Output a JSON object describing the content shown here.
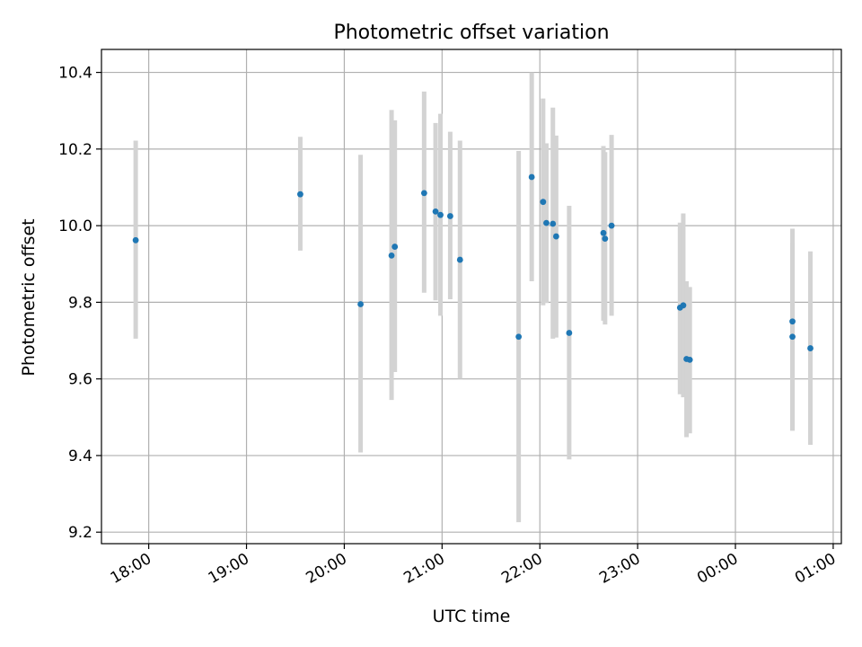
{
  "chart_data": {
    "type": "scatter",
    "title": "Photometric offset variation",
    "xlabel": "UTC time",
    "ylabel": "Photometric offset",
    "grid": true,
    "legend": "none",
    "xlim": [
      "17:31",
      "01:05"
    ],
    "ylim": [
      9.17,
      10.46
    ],
    "x_ticks": [
      "18:00",
      "19:00",
      "20:00",
      "21:00",
      "22:00",
      "23:00",
      "00:00",
      "01:00"
    ],
    "y_ticks": [
      "9.2",
      "9.4",
      "9.6",
      "9.8",
      "10.0",
      "10.2",
      "10.4"
    ],
    "series": [
      {
        "style": "points-with-error-bars",
        "point_color": "#1f77b4",
        "error_bar_color": "#d3d3d3",
        "points": [
          {
            "x": "17:52",
            "y": 9.962,
            "ylow": 9.705,
            "yhigh": 10.222
          },
          {
            "x": "19:33",
            "y": 10.082,
            "ylow": 9.935,
            "yhigh": 10.232
          },
          {
            "x": "20:10",
            "y": 9.795,
            "ylow": 9.408,
            "yhigh": 10.185
          },
          {
            "x": "20:29",
            "y": 9.922,
            "ylow": 9.545,
            "yhigh": 10.302
          },
          {
            "x": "20:31",
            "y": 9.945,
            "ylow": 9.618,
            "yhigh": 10.275
          },
          {
            "x": "20:49",
            "y": 10.085,
            "ylow": 9.825,
            "yhigh": 10.35
          },
          {
            "x": "20:56",
            "y": 10.037,
            "ylow": 9.805,
            "yhigh": 10.268
          },
          {
            "x": "20:59",
            "y": 10.028,
            "ylow": 9.765,
            "yhigh": 10.292
          },
          {
            "x": "21:05",
            "y": 10.025,
            "ylow": 9.808,
            "yhigh": 10.245
          },
          {
            "x": "21:11",
            "y": 9.911,
            "ylow": 9.6,
            "yhigh": 10.222
          },
          {
            "x": "21:47",
            "y": 9.71,
            "ylow": 9.226,
            "yhigh": 10.195
          },
          {
            "x": "21:55",
            "y": 10.127,
            "ylow": 9.855,
            "yhigh": 10.4
          },
          {
            "x": "22:02",
            "y": 10.062,
            "ylow": 9.792,
            "yhigh": 10.332
          },
          {
            "x": "22:04",
            "y": 10.007,
            "ylow": 9.798,
            "yhigh": 10.215
          },
          {
            "x": "22:08",
            "y": 10.005,
            "ylow": 9.705,
            "yhigh": 10.308
          },
          {
            "x": "22:10",
            "y": 9.972,
            "ylow": 9.708,
            "yhigh": 10.235
          },
          {
            "x": "22:18",
            "y": 9.72,
            "ylow": 9.39,
            "yhigh": 10.052
          },
          {
            "x": "22:39",
            "y": 9.981,
            "ylow": 9.752,
            "yhigh": 10.208
          },
          {
            "x": "22:40",
            "y": 9.966,
            "ylow": 9.742,
            "yhigh": 10.192
          },
          {
            "x": "22:44",
            "y": 10.0,
            "ylow": 9.765,
            "yhigh": 10.237
          },
          {
            "x": "23:26",
            "y": 9.786,
            "ylow": 9.56,
            "yhigh": 10.008
          },
          {
            "x": "23:28",
            "y": 9.792,
            "ylow": 9.552,
            "yhigh": 10.032
          },
          {
            "x": "23:30",
            "y": 9.652,
            "ylow": 9.448,
            "yhigh": 9.855
          },
          {
            "x": "23:32",
            "y": 9.65,
            "ylow": 9.458,
            "yhigh": 9.84
          },
          {
            "x": "00:35",
            "y": 9.75,
            "ylow": 9.465,
            "yhigh": 9.992
          },
          {
            "x": "00:35",
            "y": 9.71,
            "ylow": 9.465,
            "yhigh": 9.955
          },
          {
            "x": "00:46",
            "y": 9.68,
            "ylow": 9.428,
            "yhigh": 9.933
          }
        ]
      }
    ]
  }
}
